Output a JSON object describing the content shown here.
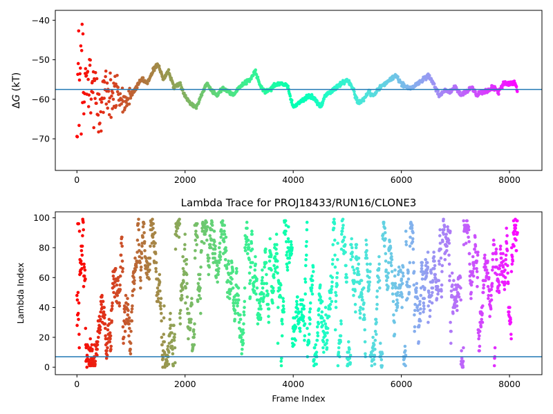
{
  "chart_data": [
    {
      "type": "scatter",
      "title": "",
      "xlabel": "",
      "ylabel": "ΔG (kT)",
      "ylabel_parts": [
        "Δ",
        "G",
        " (kT)"
      ],
      "xlim": [
        -400,
        8600
      ],
      "ylim": [
        -78,
        -37.5
      ],
      "xticks": [
        0,
        2000,
        4000,
        6000,
        8000
      ],
      "yticks": [
        -70,
        -60,
        -50,
        -40
      ],
      "xtick_labels": [
        "0",
        "2000",
        "4000",
        "6000",
        "8000"
      ],
      "ytick_labels": [
        "−70",
        "−60",
        "−50",
        "−40"
      ],
      "colormap": "rainbow (red at frame 0 → violet at last frame)",
      "hline": {
        "y": -57.5,
        "color": "#1f77b4"
      },
      "n_frames": 8200,
      "trace_knots": [
        [
          0,
          -57
        ],
        [
          150,
          -57
        ],
        [
          300,
          -59
        ],
        [
          450,
          -60
        ],
        [
          600,
          -58
        ],
        [
          750,
          -59
        ],
        [
          900,
          -61
        ],
        [
          1000,
          -59
        ],
        [
          1100,
          -57
        ],
        [
          1200,
          -55
        ],
        [
          1300,
          -56
        ],
        [
          1400,
          -53
        ],
        [
          1500,
          -51
        ],
        [
          1600,
          -55
        ],
        [
          1700,
          -53
        ],
        [
          1800,
          -57
        ],
        [
          1900,
          -56
        ],
        [
          2000,
          -59
        ],
        [
          2100,
          -61
        ],
        [
          2200,
          -62
        ],
        [
          2300,
          -59
        ],
        [
          2400,
          -56
        ],
        [
          2500,
          -58
        ],
        [
          2600,
          -59
        ],
        [
          2700,
          -57
        ],
        [
          2800,
          -58
        ],
        [
          2900,
          -59
        ],
        [
          3000,
          -57
        ],
        [
          3100,
          -56
        ],
        [
          3200,
          -55
        ],
        [
          3300,
          -53
        ],
        [
          3400,
          -57
        ],
        [
          3500,
          -58
        ],
        [
          3600,
          -57
        ],
        [
          3700,
          -56
        ],
        [
          3800,
          -56
        ],
        [
          3900,
          -57
        ],
        [
          4000,
          -62
        ],
        [
          4100,
          -61
        ],
        [
          4200,
          -60
        ],
        [
          4300,
          -59
        ],
        [
          4400,
          -60
        ],
        [
          4500,
          -62
        ],
        [
          4600,
          -59
        ],
        [
          4700,
          -58
        ],
        [
          4800,
          -57
        ],
        [
          4900,
          -56
        ],
        [
          5000,
          -55
        ],
        [
          5100,
          -57
        ],
        [
          5200,
          -61
        ],
        [
          5300,
          -60
        ],
        [
          5400,
          -58
        ],
        [
          5500,
          -59
        ],
        [
          5600,
          -57
        ],
        [
          5700,
          -56
        ],
        [
          5800,
          -55
        ],
        [
          5900,
          -54
        ],
        [
          6000,
          -56
        ],
        [
          6100,
          -57
        ],
        [
          6200,
          -57
        ],
        [
          6300,
          -56
        ],
        [
          6400,
          -55
        ],
        [
          6500,
          -54
        ],
        [
          6600,
          -56
        ],
        [
          6700,
          -59
        ],
        [
          6800,
          -58
        ],
        [
          6900,
          -58
        ],
        [
          7000,
          -57
        ],
        [
          7100,
          -59
        ],
        [
          7200,
          -58
        ],
        [
          7300,
          -57
        ],
        [
          7400,
          -59
        ],
        [
          7500,
          -58
        ],
        [
          7600,
          -58
        ],
        [
          7700,
          -57
        ],
        [
          7800,
          -58
        ],
        [
          7900,
          -56
        ],
        [
          8000,
          -56
        ],
        [
          8100,
          -56
        ],
        [
          8150,
          -58
        ]
      ],
      "early_spread": {
        "x_end": 1000,
        "range": [
          -70,
          -40
        ]
      }
    },
    {
      "type": "scatter",
      "title": "Lambda Trace for PROJ18433/RUN16/CLONE3",
      "xlabel": "Frame Index",
      "ylabel": "Lambda Index",
      "xlim": [
        -400,
        8600
      ],
      "ylim": [
        -5,
        104
      ],
      "xticks": [
        0,
        2000,
        4000,
        6000,
        8000
      ],
      "yticks": [
        0,
        20,
        40,
        60,
        80,
        100
      ],
      "xtick_labels": [
        "0",
        "2000",
        "4000",
        "6000",
        "8000"
      ],
      "ytick_labels": [
        "0",
        "20",
        "40",
        "60",
        "80",
        "100"
      ],
      "colormap": "rainbow (red at frame 0 → violet at last frame)",
      "hline": {
        "y": 7,
        "color": "#1f77b4"
      },
      "n_frames": 8200,
      "value_range": [
        0,
        99
      ]
    }
  ]
}
